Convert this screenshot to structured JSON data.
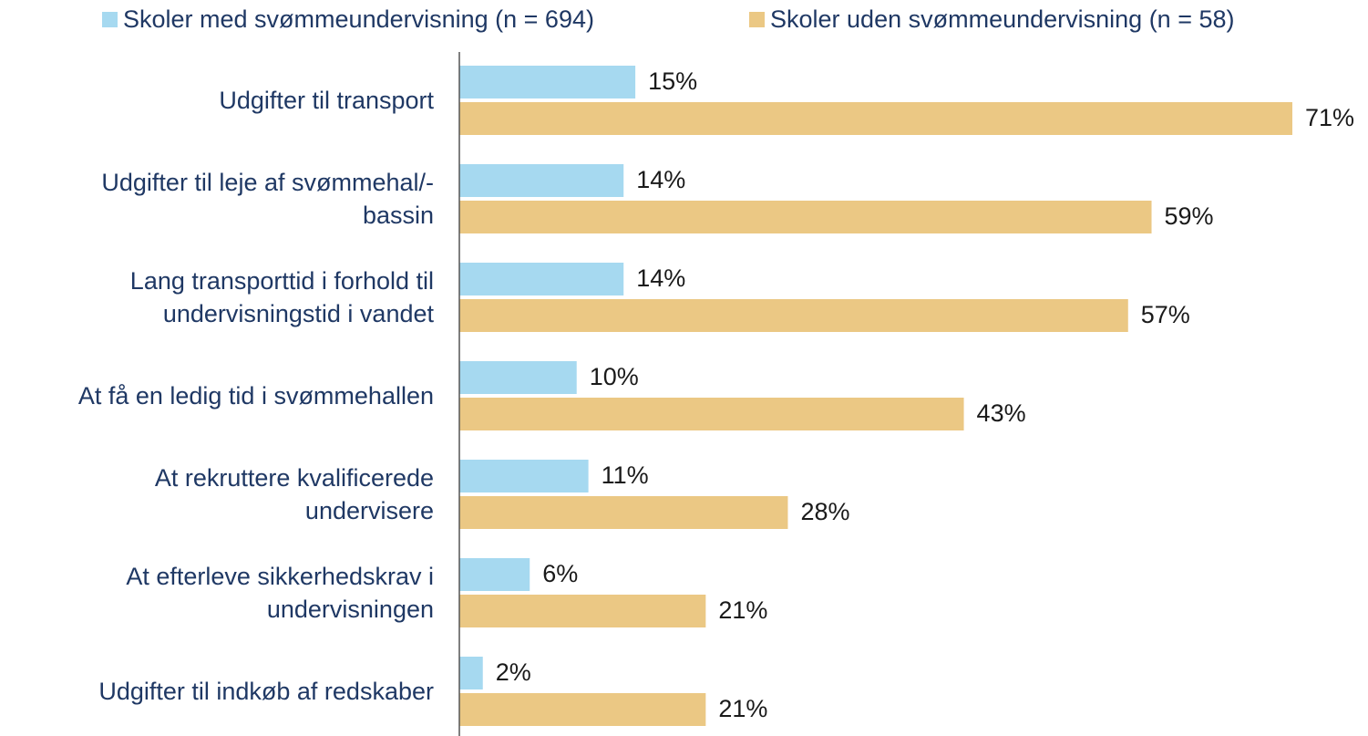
{
  "chart_data": {
    "type": "hbar",
    "categories": [
      "Udgifter til transport",
      "Udgifter til leje af svømmehal/-\nbassin",
      "Lang transporttid i forhold til\nundervisningstid i vandet",
      "At få en ledig tid i svømmehallen",
      "At rekruttere kvalificerede\nundervisere",
      "At efterleve sikkerhedskrav i\nundervisningen",
      "Udgifter til indkøb af redskaber"
    ],
    "series": [
      {
        "name": "Skoler med svømmeundervisning (n = 694)",
        "color": "#a6d9f0",
        "values": [
          15,
          14,
          14,
          10,
          11,
          6,
          2
        ],
        "value_labels": [
          "15%",
          "14%",
          "14%",
          "10%",
          "11%",
          "6%",
          "2%"
        ]
      },
      {
        "name": "Skoler uden svømmeundervisning (n = 58)",
        "color": "#ebc884",
        "values": [
          71,
          59,
          57,
          43,
          28,
          21,
          21
        ],
        "value_labels": [
          "71%",
          "59%",
          "57%",
          "43%",
          "28%",
          "21%",
          "21%"
        ]
      }
    ],
    "legend": "top"
  }
}
